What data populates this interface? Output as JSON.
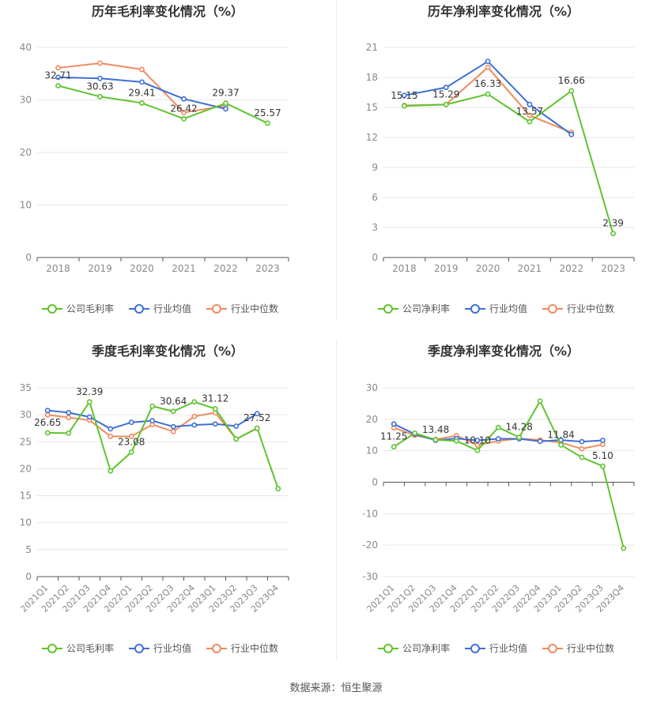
{
  "source_label": "数据来源：恒生聚源",
  "colors": {
    "company": "#5ec42d",
    "industry_avg": "#3f6fd6",
    "industry_median": "#f08a5d"
  },
  "chart_data": [
    {
      "type": "line",
      "title": "历年毛利率变化情况（%）",
      "categories": [
        "2018",
        "2019",
        "2020",
        "2021",
        "2022",
        "2023"
      ],
      "ylim": [
        0,
        40
      ],
      "yticks": [
        0,
        10,
        20,
        30,
        40
      ],
      "grid": true,
      "legend_position": "bottom",
      "series": [
        {
          "name": "公司毛利率",
          "key": "company",
          "values": [
            32.71,
            30.63,
            29.41,
            26.42,
            29.37,
            25.57
          ],
          "labels": [
            "32.71",
            "30.63",
            "29.41",
            "26.42",
            "29.37",
            "25.57"
          ]
        },
        {
          "name": "行业均值",
          "key": "industry_avg",
          "values": [
            34.3,
            34.1,
            33.4,
            30.2,
            28.3,
            null
          ]
        },
        {
          "name": "行业中位数",
          "key": "industry_median",
          "values": [
            36.1,
            37.0,
            35.8,
            27.6,
            28.9,
            null
          ]
        }
      ]
    },
    {
      "type": "line",
      "title": "历年净利率变化情况（%）",
      "categories": [
        "2018",
        "2019",
        "2020",
        "2021",
        "2022",
        "2023"
      ],
      "ylim": [
        0,
        21
      ],
      "yticks": [
        0,
        3,
        6,
        9,
        12,
        15,
        18,
        21
      ],
      "grid": true,
      "legend_position": "bottom",
      "series": [
        {
          "name": "公司净利率",
          "key": "company",
          "values": [
            15.15,
            15.29,
            16.33,
            13.57,
            16.66,
            2.39
          ],
          "labels": [
            "15.15",
            "15.29",
            "16.33",
            "13.57",
            "16.66",
            "2.39"
          ]
        },
        {
          "name": "行业均值",
          "key": "industry_avg",
          "values": [
            16.2,
            17.0,
            19.6,
            15.3,
            12.3,
            null
          ]
        },
        {
          "name": "行业中位数",
          "key": "industry_median",
          "values": [
            15.2,
            15.3,
            19.0,
            14.2,
            12.5,
            null
          ]
        }
      ]
    },
    {
      "type": "line",
      "title": "季度毛利率变化情况（%）",
      "categories": [
        "2021Q1",
        "2021Q2",
        "2021Q3",
        "2021Q4",
        "2022Q1",
        "2022Q2",
        "2022Q3",
        "2022Q4",
        "2023Q1",
        "2023Q2",
        "2023Q3",
        "2023Q4"
      ],
      "ylim": [
        0,
        35
      ],
      "yticks": [
        0,
        5,
        10,
        15,
        20,
        25,
        30,
        35
      ],
      "grid": true,
      "legend_position": "bottom",
      "series": [
        {
          "name": "公司毛利率",
          "key": "company",
          "values": [
            26.65,
            26.6,
            32.39,
            19.6,
            23.08,
            31.6,
            30.64,
            32.4,
            31.12,
            25.5,
            27.52,
            16.3
          ],
          "labels": [
            "26.65",
            null,
            "32.39",
            null,
            "23.08",
            null,
            "30.64",
            null,
            "31.12",
            null,
            "27.52",
            null
          ]
        },
        {
          "name": "行业均值",
          "key": "industry_avg",
          "values": [
            30.8,
            30.4,
            29.6,
            27.4,
            28.6,
            28.9,
            27.8,
            28.1,
            28.3,
            27.9,
            30.2,
            null
          ]
        },
        {
          "name": "行业中位数",
          "key": "industry_median",
          "values": [
            30.0,
            29.5,
            29.0,
            26.0,
            26.0,
            28.2,
            26.9,
            29.7,
            30.4,
            25.5,
            27.5,
            null
          ]
        }
      ]
    },
    {
      "type": "line",
      "title": "季度净利率变化情况（%）",
      "categories": [
        "2021Q1",
        "2021Q2",
        "2021Q3",
        "2021Q4",
        "2022Q1",
        "2022Q2",
        "2022Q3",
        "2022Q4",
        "2023Q1",
        "2023Q2",
        "2023Q3",
        "2023Q4"
      ],
      "ylim": [
        -30,
        30
      ],
      "yticks": [
        -30,
        -20,
        -10,
        0,
        10,
        20,
        30
      ],
      "grid": true,
      "legend_position": "bottom",
      "series": [
        {
          "name": "公司净利率",
          "key": "company",
          "values": [
            11.25,
            15.6,
            13.48,
            13.1,
            10.1,
            17.4,
            14.28,
            25.8,
            11.84,
            7.9,
            5.1,
            -21.0
          ],
          "labels": [
            "11.25",
            null,
            "13.48",
            null,
            "10.10",
            null,
            "14.28",
            null,
            "11.84",
            null,
            "5.10",
            null
          ]
        },
        {
          "name": "行业均值",
          "key": "industry_avg",
          "values": [
            18.5,
            15.3,
            13.3,
            13.9,
            13.3,
            13.8,
            13.8,
            13.0,
            13.4,
            12.9,
            13.3,
            null
          ]
        },
        {
          "name": "行业中位数",
          "key": "industry_median",
          "values": [
            17.3,
            14.9,
            13.6,
            14.8,
            11.8,
            13.1,
            13.9,
            13.4,
            12.6,
            10.6,
            12.0,
            null
          ]
        }
      ]
    }
  ]
}
